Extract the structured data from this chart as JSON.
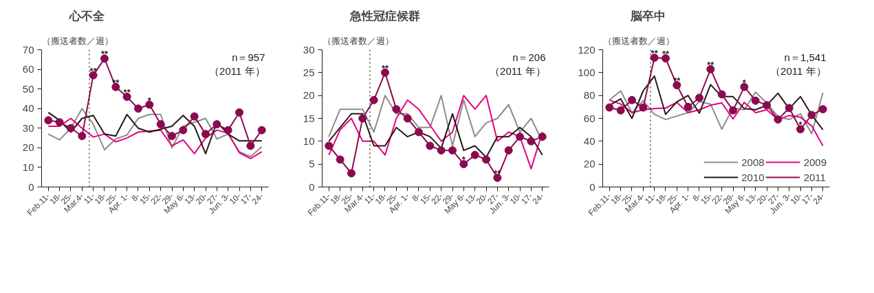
{
  "chart_data": [
    {
      "type": "line",
      "title": "心不全",
      "ylabel": "（搬送者数／週）",
      "categories": [
        "Feb.11-",
        "18-",
        "25-",
        "Mar.4-",
        "11-",
        "18-",
        "25-",
        "Apr. 1-",
        "8-",
        "15-",
        "22-",
        "29-",
        "May 6-",
        "13-",
        "20-",
        "27-",
        "Jun. 3-",
        "10-",
        "17-",
        "24-"
      ],
      "ylim": [
        0,
        70
      ],
      "yticks": [
        0,
        10,
        20,
        30,
        40,
        50,
        60,
        70
      ],
      "grid": false,
      "series": [
        {
          "color": "#8c8c8c",
          "marker": "none",
          "values": [
            27,
            24,
            30,
            40,
            32,
            19,
            24.5,
            26.5,
            35,
            37,
            37,
            20,
            31,
            33,
            35,
            24.5,
            27,
            18,
            15.5,
            20.5
          ]
        },
        {
          "color": "#e5007f",
          "marker": "none",
          "values": [
            31,
            31,
            35,
            30,
            25.5,
            27,
            23,
            25,
            28,
            28.5,
            29,
            21,
            24,
            17,
            25,
            29,
            27.5,
            17.5,
            14.5,
            18
          ]
        },
        {
          "color": "#231815",
          "marker": "none",
          "values": [
            38,
            34,
            28,
            35,
            36.5,
            27,
            26,
            37,
            30,
            28,
            29.5,
            31,
            36.5,
            31,
            17,
            33,
            27,
            23.5,
            23.5,
            23.5
          ]
        },
        {
          "color": "#8b0a50",
          "marker": "circle",
          "values": [
            34,
            33,
            30,
            26,
            57,
            65.5,
            51,
            46,
            40,
            42,
            32,
            26,
            29,
            36,
            27,
            32,
            29,
            38,
            21,
            29
          ]
        }
      ],
      "ref_lines": [
        {
          "axis": "x",
          "value": "11-",
          "line_style": "dotted",
          "color": "#231815"
        }
      ],
      "annotations": [
        "n＝957",
        "（2011 年）",
        {
          "text": "**",
          "x": "11-",
          "y": 57
        },
        {
          "text": "**",
          "y": 65.5
        },
        {
          "text": "**",
          "y": 51
        },
        {
          "text": "**",
          "x": "Apr. 1-",
          "y": 46
        },
        {
          "text": "*",
          "x": "15-",
          "y": 42
        }
      ]
    },
    {
      "type": "line",
      "title": "急性冠症候群",
      "ylabel": "（搬送者数／週）",
      "categories": [
        "Feb.11-",
        "18-",
        "25-",
        "Mar.4-",
        "11-",
        "18-",
        "25-",
        "Apr. 1-",
        "8-",
        "15-",
        "22-",
        "29-",
        "May 6-",
        "13-",
        "20-",
        "27-",
        "Jun. 3-",
        "10-",
        "17-",
        "24-"
      ],
      "ylim": [
        0,
        30
      ],
      "yticks": [
        0,
        5,
        10,
        15,
        20,
        25,
        30
      ],
      "grid": false,
      "series": [
        {
          "color": "#8c8c8c",
          "marker": "none",
          "values": [
            11,
            17,
            17,
            17,
            12,
            20,
            16,
            16,
            13,
            13,
            20,
            9,
            19,
            11,
            14,
            15,
            18,
            12,
            15,
            10
          ]
        },
        {
          "color": "#e5007f",
          "marker": "none",
          "values": [
            7,
            12.5,
            15,
            10,
            10,
            7,
            15,
            19,
            17,
            13.5,
            10,
            12,
            20,
            17,
            20,
            10,
            12,
            11,
            4,
            12
          ]
        },
        {
          "color": "#231815",
          "marker": "none",
          "values": [
            10,
            13,
            16,
            16,
            9,
            9,
            13,
            11,
            12,
            11,
            8.5,
            16,
            8,
            9,
            6.5,
            11,
            11,
            13,
            11,
            7
          ]
        },
        {
          "color": "#8b0a50",
          "marker": "circle",
          "values": [
            9,
            6,
            3,
            15,
            19,
            25,
            17,
            15,
            12,
            9,
            8,
            8,
            5,
            7,
            6,
            2,
            8,
            11,
            10,
            11
          ]
        }
      ],
      "ref_lines": [
        {
          "axis": "x",
          "value": "11-",
          "line_style": "dotted",
          "color": "#231815"
        }
      ],
      "annotations": [
        "n＝206",
        "（2011 年）",
        {
          "text": "**",
          "y": 25
        },
        {
          "text": "*",
          "x": "May 6-",
          "y": 5
        },
        {
          "text": "**",
          "x": "27-",
          "y": 2
        }
      ]
    },
    {
      "type": "line",
      "title": "脳卒中",
      "ylabel": "（搬送者数／週）",
      "categories": [
        "Feb.11-",
        "18-",
        "25-",
        "Mar.4-",
        "11-",
        "18-",
        "25-",
        "Apr. 1-",
        "8-",
        "15-",
        "22-",
        "29-",
        "May 6-",
        "13-",
        "20-",
        "27-",
        "Jun. 3-",
        "10-",
        "17-",
        "24-"
      ],
      "ylim": [
        0,
        120
      ],
      "yticks": [
        0,
        20,
        40,
        60,
        80,
        100,
        120
      ],
      "grid": false,
      "legend": "bottom right",
      "series": [
        {
          "name": "2008",
          "color": "#8c8c8c",
          "marker": "none",
          "values": [
            76,
            84,
            65,
            75.5,
            63.5,
            59,
            62,
            65,
            74.5,
            72.5,
            50.5,
            69,
            67.5,
            83,
            73.5,
            61.5,
            59,
            64,
            46.5,
            82.5
          ]
        },
        {
          "name": "2009",
          "color": "#e5007f",
          "marker": "none",
          "values": [
            76,
            72.5,
            65,
            67.5,
            68.5,
            69,
            74,
            65,
            67.5,
            71.5,
            73.5,
            59.5,
            74,
            65,
            67.5,
            59,
            62.5,
            61,
            53.5,
            36
          ]
        },
        {
          "name": "2010",
          "color": "#231815",
          "marker": "none",
          "values": [
            71.5,
            77,
            60,
            84,
            97,
            63.5,
            74.5,
            80,
            64.5,
            89.5,
            79,
            79,
            68.5,
            67.5,
            71.5,
            82,
            68.5,
            79,
            63,
            50
          ]
        },
        {
          "name": "2011",
          "color": "#8b0a50",
          "marker": "circle",
          "values": [
            69.5,
            67,
            76,
            69.5,
            113,
            112.5,
            89,
            70,
            78,
            103,
            81,
            67,
            87.5,
            75.5,
            71.5,
            59,
            69,
            50.5,
            63,
            68
          ]
        }
      ],
      "ref_lines": [
        {
          "axis": "x",
          "value": "11-",
          "line_style": "dotted",
          "color": "#231815"
        }
      ],
      "annotations": [
        "n＝1,541",
        "（2011 年）",
        {
          "text": "**",
          "x": "11-",
          "y": 113
        },
        {
          "text": "**",
          "y": 112.5
        },
        {
          "text": "**",
          "y": 89
        },
        {
          "text": "**",
          "x": "15-",
          "y": 103
        },
        {
          "text": "*",
          "x": "May 6-",
          "y": 87.5
        },
        {
          "text": "*",
          "x": "10-",
          "y": 50.5
        }
      ]
    }
  ]
}
